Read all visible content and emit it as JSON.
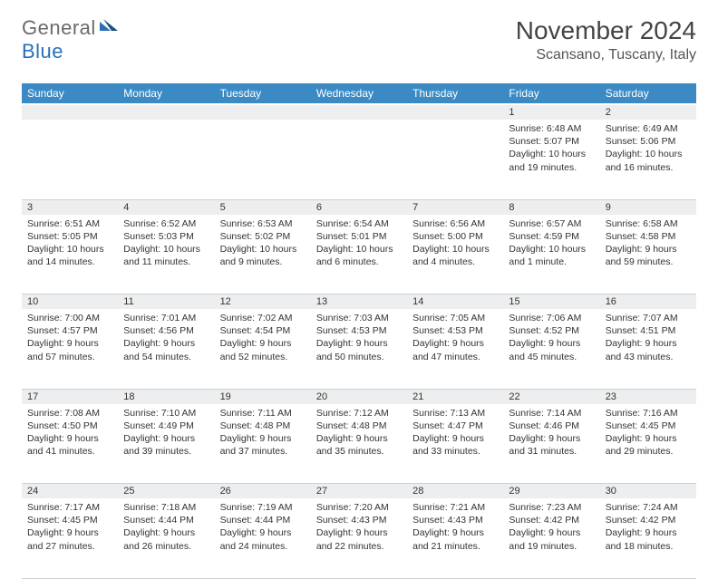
{
  "logo": {
    "general": "General",
    "blue": "Blue"
  },
  "title": "November 2024",
  "location": "Scansano, Tuscany, Italy",
  "colors": {
    "header_bg": "#3b8ac4",
    "header_text": "#ffffff",
    "daynum_bg": "#eceef0",
    "border": "#d0d0d0",
    "logo_gray": "#6a6a6a",
    "logo_blue": "#2a6fb5",
    "text": "#333333"
  },
  "weekdays": [
    "Sunday",
    "Monday",
    "Tuesday",
    "Wednesday",
    "Thursday",
    "Friday",
    "Saturday"
  ],
  "weeks": [
    {
      "nums": [
        "",
        "",
        "",
        "",
        "",
        "1",
        "2"
      ],
      "cells": [
        null,
        null,
        null,
        null,
        null,
        {
          "sunrise": "Sunrise: 6:48 AM",
          "sunset": "Sunset: 5:07 PM",
          "daylight": "Daylight: 10 hours and 19 minutes."
        },
        {
          "sunrise": "Sunrise: 6:49 AM",
          "sunset": "Sunset: 5:06 PM",
          "daylight": "Daylight: 10 hours and 16 minutes."
        }
      ]
    },
    {
      "nums": [
        "3",
        "4",
        "5",
        "6",
        "7",
        "8",
        "9"
      ],
      "cells": [
        {
          "sunrise": "Sunrise: 6:51 AM",
          "sunset": "Sunset: 5:05 PM",
          "daylight": "Daylight: 10 hours and 14 minutes."
        },
        {
          "sunrise": "Sunrise: 6:52 AM",
          "sunset": "Sunset: 5:03 PM",
          "daylight": "Daylight: 10 hours and 11 minutes."
        },
        {
          "sunrise": "Sunrise: 6:53 AM",
          "sunset": "Sunset: 5:02 PM",
          "daylight": "Daylight: 10 hours and 9 minutes."
        },
        {
          "sunrise": "Sunrise: 6:54 AM",
          "sunset": "Sunset: 5:01 PM",
          "daylight": "Daylight: 10 hours and 6 minutes."
        },
        {
          "sunrise": "Sunrise: 6:56 AM",
          "sunset": "Sunset: 5:00 PM",
          "daylight": "Daylight: 10 hours and 4 minutes."
        },
        {
          "sunrise": "Sunrise: 6:57 AM",
          "sunset": "Sunset: 4:59 PM",
          "daylight": "Daylight: 10 hours and 1 minute."
        },
        {
          "sunrise": "Sunrise: 6:58 AM",
          "sunset": "Sunset: 4:58 PM",
          "daylight": "Daylight: 9 hours and 59 minutes."
        }
      ]
    },
    {
      "nums": [
        "10",
        "11",
        "12",
        "13",
        "14",
        "15",
        "16"
      ],
      "cells": [
        {
          "sunrise": "Sunrise: 7:00 AM",
          "sunset": "Sunset: 4:57 PM",
          "daylight": "Daylight: 9 hours and 57 minutes."
        },
        {
          "sunrise": "Sunrise: 7:01 AM",
          "sunset": "Sunset: 4:56 PM",
          "daylight": "Daylight: 9 hours and 54 minutes."
        },
        {
          "sunrise": "Sunrise: 7:02 AM",
          "sunset": "Sunset: 4:54 PM",
          "daylight": "Daylight: 9 hours and 52 minutes."
        },
        {
          "sunrise": "Sunrise: 7:03 AM",
          "sunset": "Sunset: 4:53 PM",
          "daylight": "Daylight: 9 hours and 50 minutes."
        },
        {
          "sunrise": "Sunrise: 7:05 AM",
          "sunset": "Sunset: 4:53 PM",
          "daylight": "Daylight: 9 hours and 47 minutes."
        },
        {
          "sunrise": "Sunrise: 7:06 AM",
          "sunset": "Sunset: 4:52 PM",
          "daylight": "Daylight: 9 hours and 45 minutes."
        },
        {
          "sunrise": "Sunrise: 7:07 AM",
          "sunset": "Sunset: 4:51 PM",
          "daylight": "Daylight: 9 hours and 43 minutes."
        }
      ]
    },
    {
      "nums": [
        "17",
        "18",
        "19",
        "20",
        "21",
        "22",
        "23"
      ],
      "cells": [
        {
          "sunrise": "Sunrise: 7:08 AM",
          "sunset": "Sunset: 4:50 PM",
          "daylight": "Daylight: 9 hours and 41 minutes."
        },
        {
          "sunrise": "Sunrise: 7:10 AM",
          "sunset": "Sunset: 4:49 PM",
          "daylight": "Daylight: 9 hours and 39 minutes."
        },
        {
          "sunrise": "Sunrise: 7:11 AM",
          "sunset": "Sunset: 4:48 PM",
          "daylight": "Daylight: 9 hours and 37 minutes."
        },
        {
          "sunrise": "Sunrise: 7:12 AM",
          "sunset": "Sunset: 4:48 PM",
          "daylight": "Daylight: 9 hours and 35 minutes."
        },
        {
          "sunrise": "Sunrise: 7:13 AM",
          "sunset": "Sunset: 4:47 PM",
          "daylight": "Daylight: 9 hours and 33 minutes."
        },
        {
          "sunrise": "Sunrise: 7:14 AM",
          "sunset": "Sunset: 4:46 PM",
          "daylight": "Daylight: 9 hours and 31 minutes."
        },
        {
          "sunrise": "Sunrise: 7:16 AM",
          "sunset": "Sunset: 4:45 PM",
          "daylight": "Daylight: 9 hours and 29 minutes."
        }
      ]
    },
    {
      "nums": [
        "24",
        "25",
        "26",
        "27",
        "28",
        "29",
        "30"
      ],
      "cells": [
        {
          "sunrise": "Sunrise: 7:17 AM",
          "sunset": "Sunset: 4:45 PM",
          "daylight": "Daylight: 9 hours and 27 minutes."
        },
        {
          "sunrise": "Sunrise: 7:18 AM",
          "sunset": "Sunset: 4:44 PM",
          "daylight": "Daylight: 9 hours and 26 minutes."
        },
        {
          "sunrise": "Sunrise: 7:19 AM",
          "sunset": "Sunset: 4:44 PM",
          "daylight": "Daylight: 9 hours and 24 minutes."
        },
        {
          "sunrise": "Sunrise: 7:20 AM",
          "sunset": "Sunset: 4:43 PM",
          "daylight": "Daylight: 9 hours and 22 minutes."
        },
        {
          "sunrise": "Sunrise: 7:21 AM",
          "sunset": "Sunset: 4:43 PM",
          "daylight": "Daylight: 9 hours and 21 minutes."
        },
        {
          "sunrise": "Sunrise: 7:23 AM",
          "sunset": "Sunset: 4:42 PM",
          "daylight": "Daylight: 9 hours and 19 minutes."
        },
        {
          "sunrise": "Sunrise: 7:24 AM",
          "sunset": "Sunset: 4:42 PM",
          "daylight": "Daylight: 9 hours and 18 minutes."
        }
      ]
    }
  ]
}
